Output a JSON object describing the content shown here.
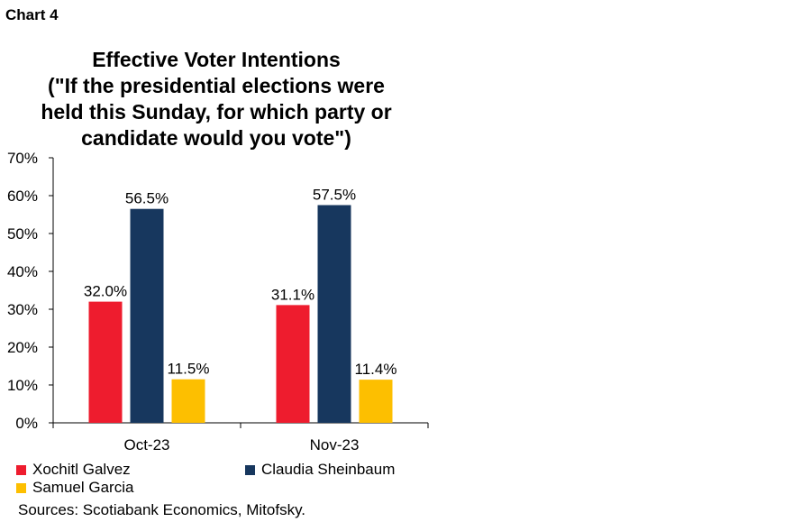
{
  "header": {
    "chart_label": "Chart 4"
  },
  "chart_data": {
    "type": "bar",
    "title": "Effective Voter Intentions",
    "title_lines": [
      "Effective Voter Intentions",
      "(\"If the presidential elections were",
      "held this Sunday, for which party or",
      "candidate would you  vote\")"
    ],
    "categories": [
      "Oct-23",
      "Nov-23"
    ],
    "series": [
      {
        "name": "Xochitl Galvez",
        "color": "#ee1c2e",
        "values": [
          32.0,
          31.1
        ],
        "labels": [
          "32.0%",
          "31.1%"
        ]
      },
      {
        "name": "Claudia Sheinbaum",
        "color": "#17375e",
        "values": [
          56.5,
          57.5
        ],
        "labels": [
          "56.5%",
          "57.5%"
        ]
      },
      {
        "name": "Samuel Garcia",
        "color": "#fdbf00",
        "values": [
          11.5,
          11.4
        ],
        "labels": [
          "11.5%",
          "11.4%"
        ]
      }
    ],
    "ylim": [
      0,
      70
    ],
    "yticks": [
      0,
      10,
      20,
      30,
      40,
      50,
      60,
      70
    ],
    "ytick_labels": [
      "0%",
      "10%",
      "20%",
      "30%",
      "40%",
      "50%",
      "60%",
      "70%"
    ],
    "grid": false,
    "legend_position": "bottom"
  },
  "footer": {
    "source": "Sources: Scotiabank Economics, Mitofsky."
  }
}
